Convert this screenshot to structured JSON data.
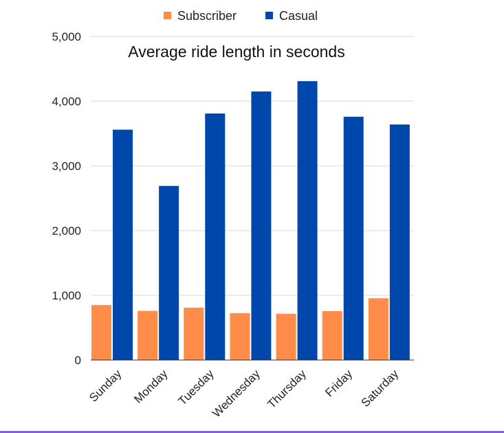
{
  "chart_data": {
    "type": "bar",
    "title": "Average ride length in seconds",
    "categories": [
      "Sunday",
      "Monday",
      "Tuesday",
      "Wednesday",
      "Thursday",
      "Friday",
      "Saturday"
    ],
    "series": [
      {
        "name": "Subscriber",
        "color": "#ff8c48",
        "values": [
          850,
          760,
          810,
          725,
          715,
          755,
          955
        ]
      },
      {
        "name": "Casual",
        "color": "#0047ab",
        "values": [
          3560,
          2690,
          3810,
          4150,
          4310,
          3760,
          3640
        ]
      }
    ],
    "ylim": [
      0,
      5000
    ],
    "yticks": [
      "0",
      "1,000",
      "2,000",
      "3,000",
      "4,000",
      "5,000"
    ],
    "ytick_values": [
      0,
      1000,
      2000,
      3000,
      4000,
      5000
    ],
    "grid": true,
    "legend": "top-center",
    "xlabel": "",
    "ylabel": ""
  }
}
